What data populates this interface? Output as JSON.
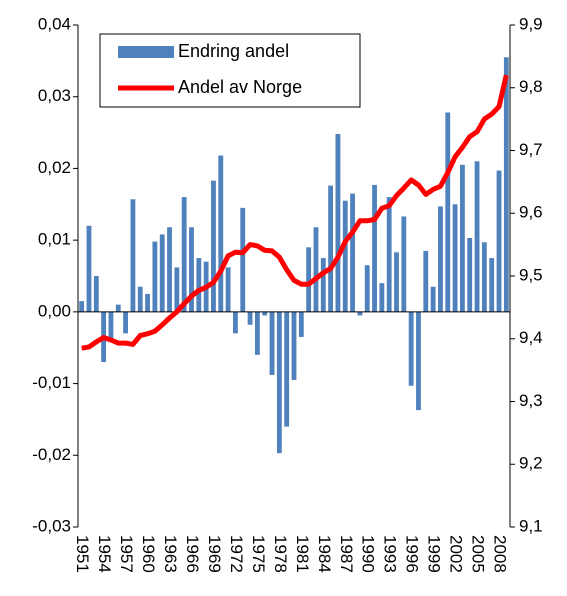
{
  "chart_data": {
    "type": "bar_line",
    "categories": [
      "1951",
      null,
      null,
      "1954",
      null,
      null,
      "1957",
      null,
      null,
      "1960",
      null,
      null,
      "1963",
      null,
      null,
      "1966",
      null,
      null,
      "1969",
      null,
      null,
      "1972",
      null,
      null,
      "1975",
      null,
      null,
      "1978",
      null,
      null,
      "1981",
      null,
      null,
      "1984",
      null,
      null,
      "1987",
      null,
      null,
      "1990",
      null,
      null,
      "1993",
      null,
      null,
      "1996",
      null,
      null,
      "1999",
      null,
      null,
      "2002",
      null,
      null,
      "2005",
      null,
      null,
      "2008",
      null
    ],
    "series": [
      {
        "name": "Endring andel",
        "color": "#4f81bd",
        "type": "bar",
        "values": [
          0.0015,
          0.012,
          0.005,
          -0.007,
          -0.004,
          0.001,
          -0.003,
          0.0157,
          0.0035,
          0.0025,
          0.0098,
          0.0108,
          0.0118,
          0.0062,
          0.016,
          0.0118,
          0.0075,
          0.007,
          0.0183,
          0.0218,
          0.0062,
          -0.003,
          0.0145,
          -0.0018,
          -0.006,
          -0.0005,
          -0.0088,
          -0.0197,
          -0.016,
          -0.0095,
          -0.0035,
          0.009,
          0.0118,
          0.0075,
          0.0176,
          0.0248,
          0.0155,
          0.0165,
          -0.0005,
          0.0065,
          0.0177,
          0.004,
          0.016,
          0.0083,
          0.0133,
          -0.0103,
          -0.0137,
          0.0085,
          0.0035,
          0.0147,
          0.0278,
          0.015,
          0.0205,
          0.0103,
          0.021,
          0.0097,
          0.0075,
          0.0197,
          0.0355
        ]
      },
      {
        "name": "Andel av Norge",
        "color": "#ff0000",
        "type": "line",
        "axis": "y2",
        "values": [
          9.385,
          9.387,
          9.395,
          9.402,
          9.398,
          9.393,
          9.393,
          9.391,
          9.405,
          9.408,
          9.412,
          9.422,
          9.433,
          9.443,
          9.456,
          9.468,
          9.477,
          9.482,
          9.49,
          9.508,
          9.532,
          9.538,
          9.537,
          9.55,
          9.548,
          9.541,
          9.54,
          9.53,
          9.51,
          9.493,
          9.487,
          9.487,
          9.496,
          9.505,
          9.512,
          9.53,
          9.555,
          9.57,
          9.588,
          9.588,
          9.59,
          9.608,
          9.612,
          9.628,
          9.64,
          9.653,
          9.645,
          9.63,
          9.638,
          9.643,
          9.665,
          9.69,
          9.705,
          9.722,
          9.73,
          9.75,
          9.758,
          9.77,
          9.82
        ]
      }
    ],
    "ylim": [
      -0.03,
      0.04
    ],
    "yticks": [
      {
        "value": -0.03,
        "label": "-0,03"
      },
      {
        "value": -0.02,
        "label": "-0,02"
      },
      {
        "value": -0.01,
        "label": "-0,01"
      },
      {
        "value": 0,
        "label": "0,00"
      },
      {
        "value": 0.01,
        "label": "0,01"
      },
      {
        "value": 0.02,
        "label": "0,02"
      },
      {
        "value": 0.03,
        "label": "0,03"
      },
      {
        "value": 0.04,
        "label": "0,04"
      }
    ],
    "y2lim": [
      9.1,
      9.9
    ],
    "y2ticks": [
      {
        "value": 9.1,
        "label": "9,1"
      },
      {
        "value": 9.2,
        "label": "9,2"
      },
      {
        "value": 9.3,
        "label": "9,3"
      },
      {
        "value": 9.4,
        "label": "9,4"
      },
      {
        "value": 9.5,
        "label": "9,5"
      },
      {
        "value": 9.6,
        "label": "9,6"
      },
      {
        "value": 9.7,
        "label": "9,7"
      },
      {
        "value": 9.8,
        "label": "9,8"
      },
      {
        "value": 9.9,
        "label": "9,9"
      }
    ],
    "legend": "top-left",
    "grid": false
  }
}
